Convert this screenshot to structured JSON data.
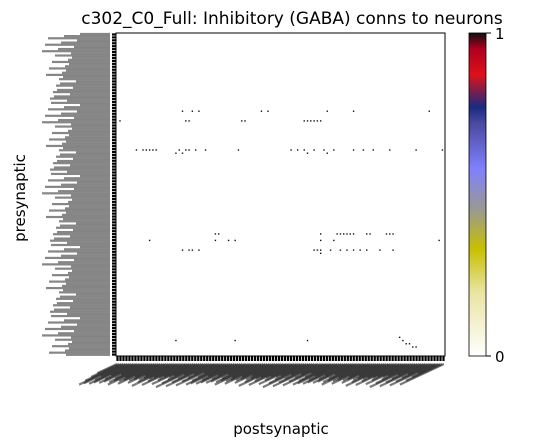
{
  "chart_data": {
    "type": "heatmap",
    "title": "c302_C0_Full: Inhibitory (GABA) conns to neurons",
    "xlabel": "postsynaptic",
    "ylabel": "presynaptic",
    "grid": false,
    "colorbar": {
      "ticks": [
        0,
        1
      ],
      "tick_labels": [
        "0",
        "1"
      ],
      "range": [
        0,
        1
      ],
      "stops": [
        {
          "value": 0.0,
          "color": "#ffffff"
        },
        {
          "value": 0.2,
          "color": "#e8e4a0"
        },
        {
          "value": 0.33,
          "color": "#c8c000"
        },
        {
          "value": 0.45,
          "color": "#9a9a90"
        },
        {
          "value": 0.58,
          "color": "#8080ff"
        },
        {
          "value": 0.72,
          "color": "#4a4aa0"
        },
        {
          "value": 0.77,
          "color": "#1a2a80"
        },
        {
          "value": 0.87,
          "color": "#e0101a"
        },
        {
          "value": 0.95,
          "color": "#b00020"
        },
        {
          "value": 1.0,
          "color": "#101010"
        }
      ]
    },
    "matrix_cells": [
      {
        "pre": 0.24,
        "post": 0.2
      },
      {
        "pre": 0.24,
        "post": 0.23
      },
      {
        "pre": 0.24,
        "post": 0.25
      },
      {
        "pre": 0.24,
        "post": 0.44
      },
      {
        "pre": 0.24,
        "post": 0.46
      },
      {
        "pre": 0.24,
        "post": 0.64
      },
      {
        "pre": 0.24,
        "post": 0.72
      },
      {
        "pre": 0.24,
        "post": 0.95
      },
      {
        "pre": 0.27,
        "post": 0.01
      },
      {
        "pre": 0.27,
        "post": 0.21
      },
      {
        "pre": 0.27,
        "post": 0.22
      },
      {
        "pre": 0.27,
        "post": 0.38
      },
      {
        "pre": 0.27,
        "post": 0.39
      },
      {
        "pre": 0.27,
        "post": 0.57
      },
      {
        "pre": 0.27,
        "post": 0.58
      },
      {
        "pre": 0.27,
        "post": 0.59
      },
      {
        "pre": 0.27,
        "post": 0.6
      },
      {
        "pre": 0.27,
        "post": 0.61
      },
      {
        "pre": 0.27,
        "post": 0.62
      },
      {
        "pre": 0.36,
        "post": 0.06
      },
      {
        "pre": 0.36,
        "post": 0.08
      },
      {
        "pre": 0.36,
        "post": 0.09
      },
      {
        "pre": 0.36,
        "post": 0.1
      },
      {
        "pre": 0.36,
        "post": 0.11
      },
      {
        "pre": 0.36,
        "post": 0.12
      },
      {
        "pre": 0.36,
        "post": 0.19
      },
      {
        "pre": 0.36,
        "post": 0.21
      },
      {
        "pre": 0.36,
        "post": 0.22
      },
      {
        "pre": 0.36,
        "post": 0.24
      },
      {
        "pre": 0.36,
        "post": 0.27
      },
      {
        "pre": 0.36,
        "post": 0.37
      },
      {
        "pre": 0.36,
        "post": 0.53
      },
      {
        "pre": 0.36,
        "post": 0.55
      },
      {
        "pre": 0.36,
        "post": 0.57
      },
      {
        "pre": 0.36,
        "post": 0.6
      },
      {
        "pre": 0.36,
        "post": 0.63
      },
      {
        "pre": 0.36,
        "post": 0.66
      },
      {
        "pre": 0.36,
        "post": 0.72
      },
      {
        "pre": 0.36,
        "post": 0.75
      },
      {
        "pre": 0.36,
        "post": 0.78
      },
      {
        "pre": 0.36,
        "post": 0.83
      },
      {
        "pre": 0.36,
        "post": 0.91
      },
      {
        "pre": 0.36,
        "post": 0.99
      },
      {
        "pre": 0.37,
        "post": 0.18
      },
      {
        "pre": 0.37,
        "post": 0.2
      },
      {
        "pre": 0.37,
        "post": 0.58
      },
      {
        "pre": 0.37,
        "post": 0.64
      },
      {
        "pre": 0.62,
        "post": 0.3
      },
      {
        "pre": 0.62,
        "post": 0.31
      },
      {
        "pre": 0.62,
        "post": 0.62
      },
      {
        "pre": 0.62,
        "post": 0.67
      },
      {
        "pre": 0.62,
        "post": 0.68
      },
      {
        "pre": 0.62,
        "post": 0.69
      },
      {
        "pre": 0.62,
        "post": 0.7
      },
      {
        "pre": 0.62,
        "post": 0.71
      },
      {
        "pre": 0.62,
        "post": 0.72
      },
      {
        "pre": 0.62,
        "post": 0.76
      },
      {
        "pre": 0.62,
        "post": 0.77
      },
      {
        "pre": 0.62,
        "post": 0.82
      },
      {
        "pre": 0.62,
        "post": 0.83
      },
      {
        "pre": 0.62,
        "post": 0.84
      },
      {
        "pre": 0.64,
        "post": 0.1
      },
      {
        "pre": 0.64,
        "post": 0.3
      },
      {
        "pre": 0.64,
        "post": 0.34
      },
      {
        "pre": 0.64,
        "post": 0.36
      },
      {
        "pre": 0.64,
        "post": 0.62
      },
      {
        "pre": 0.64,
        "post": 0.66
      },
      {
        "pre": 0.64,
        "post": 0.98
      },
      {
        "pre": 0.67,
        "post": 0.2
      },
      {
        "pre": 0.67,
        "post": 0.22
      },
      {
        "pre": 0.67,
        "post": 0.23
      },
      {
        "pre": 0.67,
        "post": 0.25
      },
      {
        "pre": 0.67,
        "post": 0.6
      },
      {
        "pre": 0.67,
        "post": 0.61
      },
      {
        "pre": 0.67,
        "post": 0.62
      },
      {
        "pre": 0.67,
        "post": 0.65
      },
      {
        "pre": 0.67,
        "post": 0.68
      },
      {
        "pre": 0.67,
        "post": 0.7
      },
      {
        "pre": 0.67,
        "post": 0.72
      },
      {
        "pre": 0.67,
        "post": 0.74
      },
      {
        "pre": 0.67,
        "post": 0.76
      },
      {
        "pre": 0.67,
        "post": 0.8
      },
      {
        "pre": 0.67,
        "post": 0.84
      },
      {
        "pre": 0.68,
        "post": 0.62
      },
      {
        "pre": 0.95,
        "post": 0.18
      },
      {
        "pre": 0.95,
        "post": 0.36
      },
      {
        "pre": 0.95,
        "post": 0.58
      },
      {
        "pre": 0.94,
        "post": 0.86
      },
      {
        "pre": 0.95,
        "post": 0.87
      },
      {
        "pre": 0.96,
        "post": 0.88
      },
      {
        "pre": 0.96,
        "post": 0.89
      },
      {
        "pre": 0.97,
        "post": 0.9
      },
      {
        "pre": 0.97,
        "post": 0.91
      }
    ],
    "x_tick_label_count": 300,
    "y_tick_label_count": 300
  }
}
